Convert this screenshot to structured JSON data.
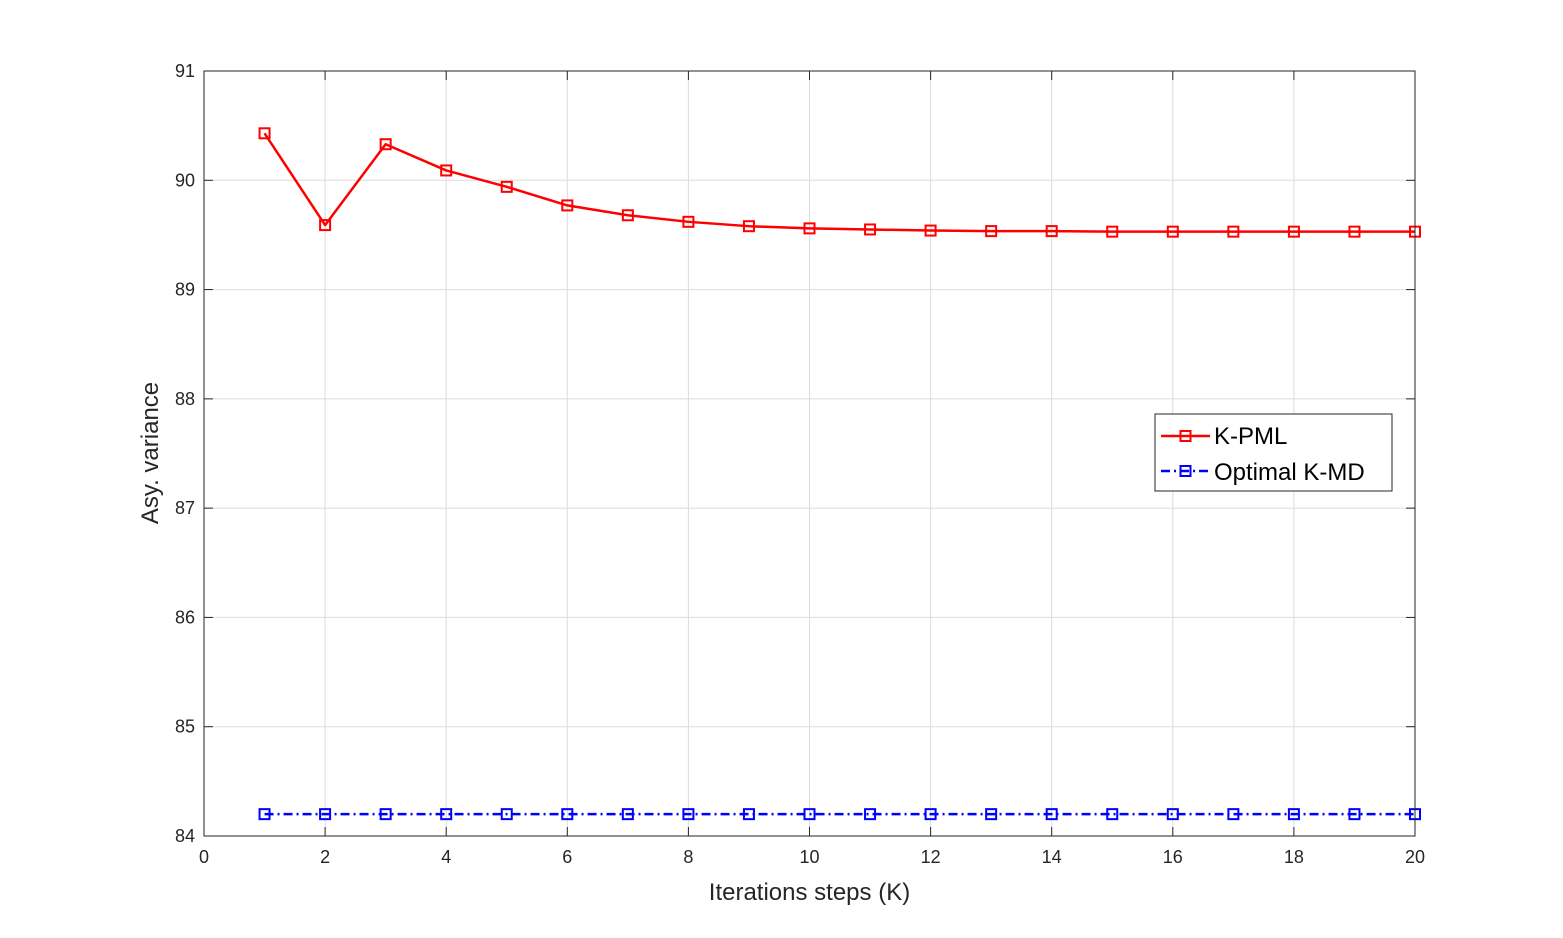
{
  "chart_data": {
    "type": "line",
    "title": "",
    "xlabel": "Iterations steps (K)",
    "ylabel": "Asy. variance",
    "xlim": [
      0,
      20
    ],
    "ylim": [
      84,
      91
    ],
    "xticks": [
      0,
      2,
      4,
      6,
      8,
      10,
      12,
      14,
      16,
      18,
      20
    ],
    "yticks": [
      84,
      85,
      86,
      87,
      88,
      89,
      90,
      91
    ],
    "xtick_labels": [
      "0",
      "2",
      "4",
      "6",
      "8",
      "10",
      "12",
      "14",
      "16",
      "18",
      "20"
    ],
    "ytick_labels": [
      "84",
      "85",
      "86",
      "87",
      "88",
      "89",
      "90",
      "91"
    ],
    "grid": true,
    "legend_position": "right",
    "x": [
      1,
      2,
      3,
      4,
      5,
      6,
      7,
      8,
      9,
      10,
      11,
      12,
      13,
      14,
      15,
      16,
      17,
      18,
      19,
      20
    ],
    "series": [
      {
        "name": "K-PML",
        "color": "#ff0000",
        "line_style": "solid",
        "marker": "square",
        "values": [
          90.43,
          89.59,
          90.33,
          90.09,
          89.94,
          89.77,
          89.68,
          89.62,
          89.58,
          89.56,
          89.55,
          89.54,
          89.535,
          89.535,
          89.53,
          89.53,
          89.53,
          89.53,
          89.53,
          89.53
        ]
      },
      {
        "name": "Optimal K-MD",
        "color": "#0000ff",
        "line_style": "dash-dot",
        "marker": "square",
        "values": [
          84.2,
          84.2,
          84.2,
          84.2,
          84.2,
          84.2,
          84.2,
          84.2,
          84.2,
          84.2,
          84.2,
          84.2,
          84.2,
          84.2,
          84.2,
          84.2,
          84.2,
          84.2,
          84.2,
          84.2
        ]
      }
    ]
  }
}
